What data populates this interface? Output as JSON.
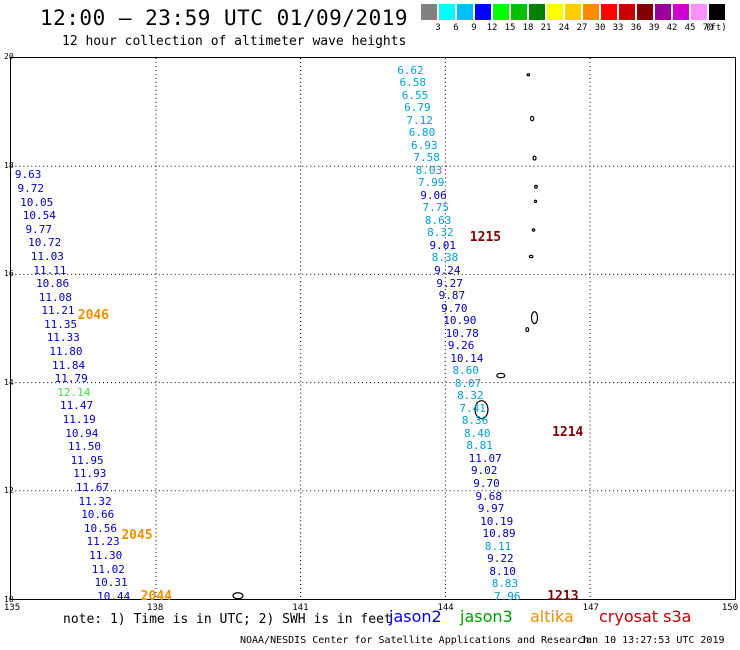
{
  "header": {
    "title": "12:00 — 23:59 UTC 01/09/2019",
    "subtitle": "12 hour collection of altimeter wave heights"
  },
  "scale": {
    "unit": "(ft)",
    "bins": [
      {
        "label": "3",
        "color": "#808080"
      },
      {
        "label": "6",
        "color": "#00ffff"
      },
      {
        "label": "9",
        "color": "#00bfff"
      },
      {
        "label": "12",
        "color": "#0000ff"
      },
      {
        "label": "15",
        "color": "#00ff00"
      },
      {
        "label": "18",
        "color": "#00c000"
      },
      {
        "label": "21",
        "color": "#008000"
      },
      {
        "label": "24",
        "color": "#ffff00"
      },
      {
        "label": "27",
        "color": "#ffd000"
      },
      {
        "label": "30",
        "color": "#ff8c00"
      },
      {
        "label": "33",
        "color": "#ff0000"
      },
      {
        "label": "36",
        "color": "#c80000"
      },
      {
        "label": "39",
        "color": "#800000"
      },
      {
        "label": "42",
        "color": "#990099"
      },
      {
        "label": "45",
        "color": "#d000d0"
      },
      {
        "label": "70",
        "color": "#ff90ff"
      },
      {
        "label": "",
        "color": "#000000"
      }
    ]
  },
  "map": {
    "lon_range": [
      135,
      150
    ],
    "lat_range": [
      10,
      20
    ],
    "lon_ticks": [
      "135",
      "138",
      "141",
      "144",
      "147",
      "150"
    ],
    "lat_ticks": [
      "20",
      "18",
      "16",
      "14",
      "12",
      "10"
    ],
    "grid": true
  },
  "colors": {
    "sat_a": "#00a0d8",
    "sat_b": "#0000c8",
    "sat_c": "#40e040",
    "pass_orange": "#f09000",
    "pass_maroon": "#800000"
  },
  "tracks": [
    {
      "id": "west",
      "values": [
        "9.63",
        "9.72",
        "10.05",
        "10.54",
        "9.77",
        "10.72",
        "11.03",
        "11.11",
        "10.86",
        "11.08",
        "11.21",
        "11.35",
        "11.33",
        "11.80",
        "11.84",
        "11.79",
        "12.14",
        "11.47",
        "11.19",
        "10.94",
        "11.50",
        "11.95",
        "11.93",
        "11.67",
        "11.32",
        "10.66",
        "10.56",
        "11.23",
        "11.30",
        "11.02",
        "10.31",
        "10.44"
      ],
      "colors": [
        "b",
        "b",
        "b",
        "b",
        "b",
        "b",
        "b",
        "b",
        "b",
        "b",
        "b",
        "b",
        "b",
        "b",
        "b",
        "b",
        "c",
        "b",
        "b",
        "b",
        "b",
        "b",
        "b",
        "b",
        "b",
        "b",
        "b",
        "b",
        "b",
        "b",
        "b",
        "b"
      ],
      "lat_start": 17.82,
      "lat_end": 10.06,
      "lon_start": 135.1,
      "lon_end": 136.8
    },
    {
      "id": "east",
      "values": [
        "6.62",
        "6.58",
        "6.55",
        "6.79",
        "7.12",
        "6.80",
        "6.93",
        "7.58",
        "8.03",
        "7.99",
        "9.06",
        "7.75",
        "8.63",
        "8.32",
        "9.01",
        "8.38",
        "9.24",
        "9.27",
        "9.87",
        "9.70",
        "10.90",
        "10.78",
        "9.26",
        "10.14",
        "8.60",
        "8.07",
        "8.32",
        "7.41",
        "8.36",
        "8.40",
        "8.81",
        "11.07",
        "9.02",
        "9.70",
        "9.68",
        "9.97",
        "10.19",
        "10.89",
        "8.11",
        "9.22",
        "8.10",
        "8.83",
        "7.96"
      ],
      "colors": [
        "a",
        "a",
        "a",
        "a",
        "a",
        "a",
        "a",
        "a",
        "a",
        "a",
        "b",
        "a",
        "a",
        "a",
        "b",
        "a",
        "b",
        "b",
        "b",
        "b",
        "b",
        "b",
        "b",
        "b",
        "a",
        "a",
        "a",
        "a",
        "a",
        "a",
        "a",
        "b",
        "b",
        "b",
        "b",
        "b",
        "b",
        "b",
        "a",
        "b",
        "b",
        "a",
        "a"
      ],
      "lat_start": 19.75,
      "lat_end": 10.06,
      "lon_start": 143.0,
      "lon_end": 145.0
    }
  ],
  "passes": [
    {
      "label": "2046",
      "color": "o",
      "lon": 136.4,
      "lat": 15.23
    },
    {
      "label": "2045",
      "color": "o",
      "lon": 137.3,
      "lat": 11.17
    },
    {
      "label": "2044",
      "color": "o",
      "lon": 137.7,
      "lat": 10.06
    },
    {
      "label": "1215",
      "color": "m",
      "lon": 144.5,
      "lat": 16.66
    },
    {
      "label": "1214",
      "color": "m",
      "lon": 146.2,
      "lat": 13.08
    },
    {
      "label": "1213",
      "color": "m",
      "lon": 146.1,
      "lat": 10.06
    }
  ],
  "footer": {
    "note": "note: 1) Time is in UTC; 2) SWH is in feet",
    "credit": "NOAA/NESDIS Center for Satellite Applications and Research",
    "timestamp": "Jan 10 13:27:53 UTC 2019"
  },
  "legend": [
    {
      "label": "jason2",
      "color": "#0000e0"
    },
    {
      "label": "jason3",
      "color": "#00a000"
    },
    {
      "label": "altika",
      "color": "#f09000"
    },
    {
      "label": "cryosat s3a",
      "color": "#c00000"
    }
  ]
}
